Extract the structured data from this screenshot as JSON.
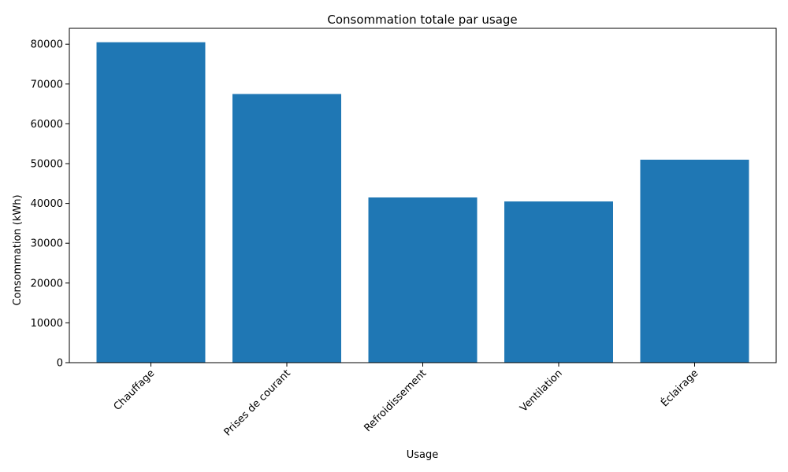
{
  "chart_data": {
    "type": "bar",
    "title": "Consommation totale par usage",
    "xlabel": "Usage",
    "ylabel": "Consommation (kWh)",
    "categories": [
      "Chauffage",
      "Prises de courant",
      "Refroidissement",
      "Ventilation",
      "Éclairage"
    ],
    "values": [
      80500,
      67500,
      41500,
      40500,
      51000
    ],
    "ylim": [
      0,
      84000
    ],
    "yticks": [
      "0",
      "10000",
      "20000",
      "30000",
      "40000",
      "50000",
      "60000",
      "70000",
      "80000"
    ],
    "grid": false,
    "bar_color": "#1f77b4"
  }
}
